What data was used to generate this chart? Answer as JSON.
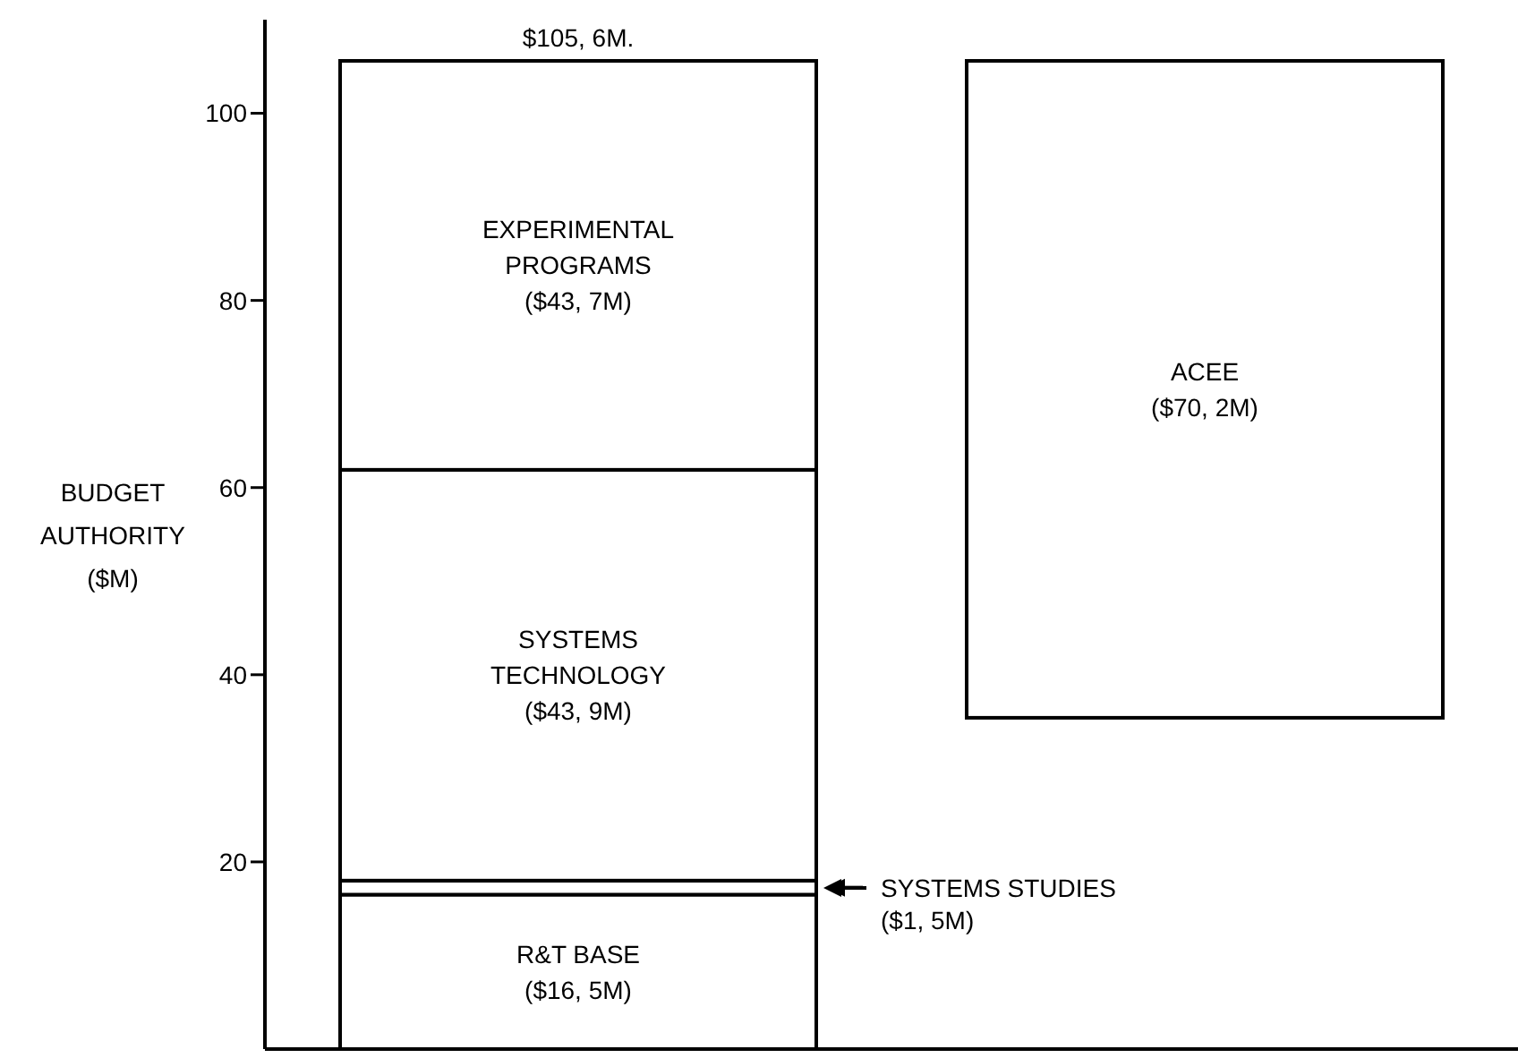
{
  "chart_data": {
    "type": "bar",
    "stacked": true,
    "ylabel": "BUDGET AUTHORITY ($M)",
    "categories": [
      null,
      null
    ],
    "series": [
      {
        "name": "R&T BASE",
        "color": "#ffffff",
        "values": [
          16.5,
          null
        ],
        "value_labels": [
          "($16, 5M)",
          null
        ]
      },
      {
        "color": "#ffffff",
        "values": [
          1.5,
          null
        ]
      },
      {
        "name": "SYSTEMS TECHNOLOGY",
        "color": "#ffffff",
        "values": [
          43.9,
          null
        ],
        "value_labels": [
          "($43, 9M)",
          null
        ]
      },
      {
        "name": "EXPERIMENTAL PROGRAMS",
        "color": "#ffffff",
        "values": [
          43.7,
          null
        ],
        "value_labels": [
          "($43, 7M)",
          null
        ]
      },
      {
        "name": "ACEE",
        "color": "#ffffff",
        "values": [
          null,
          70.2
        ],
        "base": [
          null,
          35.4
        ],
        "value_labels": [
          null,
          "($70, 2M)"
        ]
      }
    ],
    "totals": [
      "$105, 6M.",
      null
    ],
    "annotations": [
      "SYSTEMS STUDIES ($1, 5M)"
    ],
    "ylim": [
      0,
      110
    ],
    "yticks": [
      20,
      40,
      60,
      80,
      100
    ],
    "grid": false,
    "legend": false
  }
}
